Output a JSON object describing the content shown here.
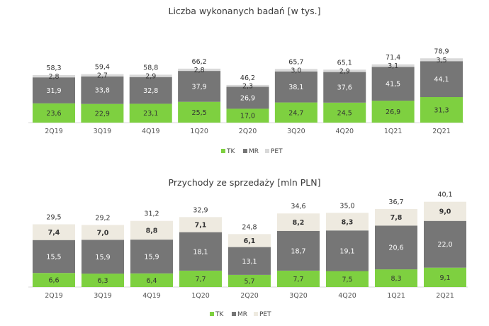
{
  "colors": {
    "TK": "#7ed040",
    "MR": "#767676",
    "PET": "#eeeae0"
  },
  "chart_data": [
    {
      "type": "bar",
      "stacked": true,
      "title": "Liczba wykonanych badań [w tys.]",
      "categories": [
        "2Q19",
        "3Q19",
        "4Q19",
        "1Q20",
        "2Q20",
        "3Q20",
        "4Q20",
        "1Q21",
        "2Q21"
      ],
      "series": [
        {
          "name": "TK",
          "color": "#7ed040",
          "values": [
            23.6,
            22.9,
            23.1,
            25.5,
            17.0,
            24.7,
            24.5,
            26.9,
            31.3
          ],
          "labels": [
            "23,6",
            "22,9",
            "23,1",
            "25,5",
            "17,0",
            "24,7",
            "24,5",
            "26,9",
            "31,3"
          ]
        },
        {
          "name": "MR",
          "color": "#767676",
          "values": [
            31.9,
            33.8,
            32.8,
            37.9,
            26.9,
            38.1,
            37.6,
            41.5,
            44.1
          ],
          "labels": [
            "31,9",
            "33,8",
            "32,8",
            "37,9",
            "26,9",
            "38,1",
            "37,6",
            "41,5",
            "44,1"
          ]
        },
        {
          "name": "PET",
          "color": "#d9d9d9",
          "values": [
            2.8,
            2.7,
            2.9,
            2.8,
            2.3,
            3.0,
            2.9,
            3.1,
            3.5
          ],
          "labels": [
            "2,8",
            "2,7",
            "2,9",
            "2,8",
            "2,3",
            "3,0",
            "2,9",
            "3,1",
            "3,5"
          ]
        }
      ],
      "totals": [
        58.3,
        59.4,
        58.8,
        66.2,
        46.2,
        65.7,
        65.1,
        71.4,
        78.9
      ],
      "total_labels": [
        "58,3",
        "59,4",
        "58,8",
        "66,2",
        "46,2",
        "65,7",
        "65,1",
        "71,4",
        "78,9"
      ],
      "legend": [
        "TK",
        "MR",
        "PET"
      ],
      "legend_position": "bottom-right",
      "grid": false
    },
    {
      "type": "bar",
      "stacked": true,
      "title": "Przychody ze sprzedaży [mln PLN]",
      "categories": [
        "2Q19",
        "3Q19",
        "4Q19",
        "1Q20",
        "2Q20",
        "3Q20",
        "4Q20",
        "1Q21",
        "2Q21"
      ],
      "series": [
        {
          "name": "TK",
          "color": "#7ed040",
          "values": [
            6.6,
            6.3,
            6.4,
            7.7,
            5.7,
            7.7,
            7.5,
            8.3,
            9.1
          ],
          "labels": [
            "6,6",
            "6,3",
            "6,4",
            "7,7",
            "5,7",
            "7,7",
            "7,5",
            "8,3",
            "9,1"
          ]
        },
        {
          "name": "MR",
          "color": "#767676",
          "values": [
            15.5,
            15.9,
            15.9,
            18.1,
            13.1,
            18.7,
            19.1,
            20.6,
            22.0
          ],
          "labels": [
            "15,5",
            "15,9",
            "15,9",
            "18,1",
            "13,1",
            "18,7",
            "19,1",
            "20,6",
            "22,0"
          ]
        },
        {
          "name": "PET",
          "color": "#eeeae0",
          "values": [
            7.4,
            7.0,
            8.8,
            7.1,
            6.1,
            8.2,
            8.3,
            7.8,
            9.0
          ],
          "labels": [
            "7,4",
            "7,0",
            "8,8",
            "7,1",
            "6,1",
            "8,2",
            "8,3",
            "7,8",
            "9,0"
          ]
        }
      ],
      "totals": [
        29.5,
        29.2,
        31.2,
        32.9,
        24.8,
        34.6,
        35.0,
        36.7,
        40.1
      ],
      "total_labels": [
        "29,5",
        "29,2",
        "31,2",
        "32,9",
        "24,8",
        "34,6",
        "35,0",
        "36,7",
        "40,1"
      ],
      "legend": [
        "TK",
        "MR",
        "PET"
      ],
      "legend_position": "bottom-right",
      "grid": false
    }
  ]
}
